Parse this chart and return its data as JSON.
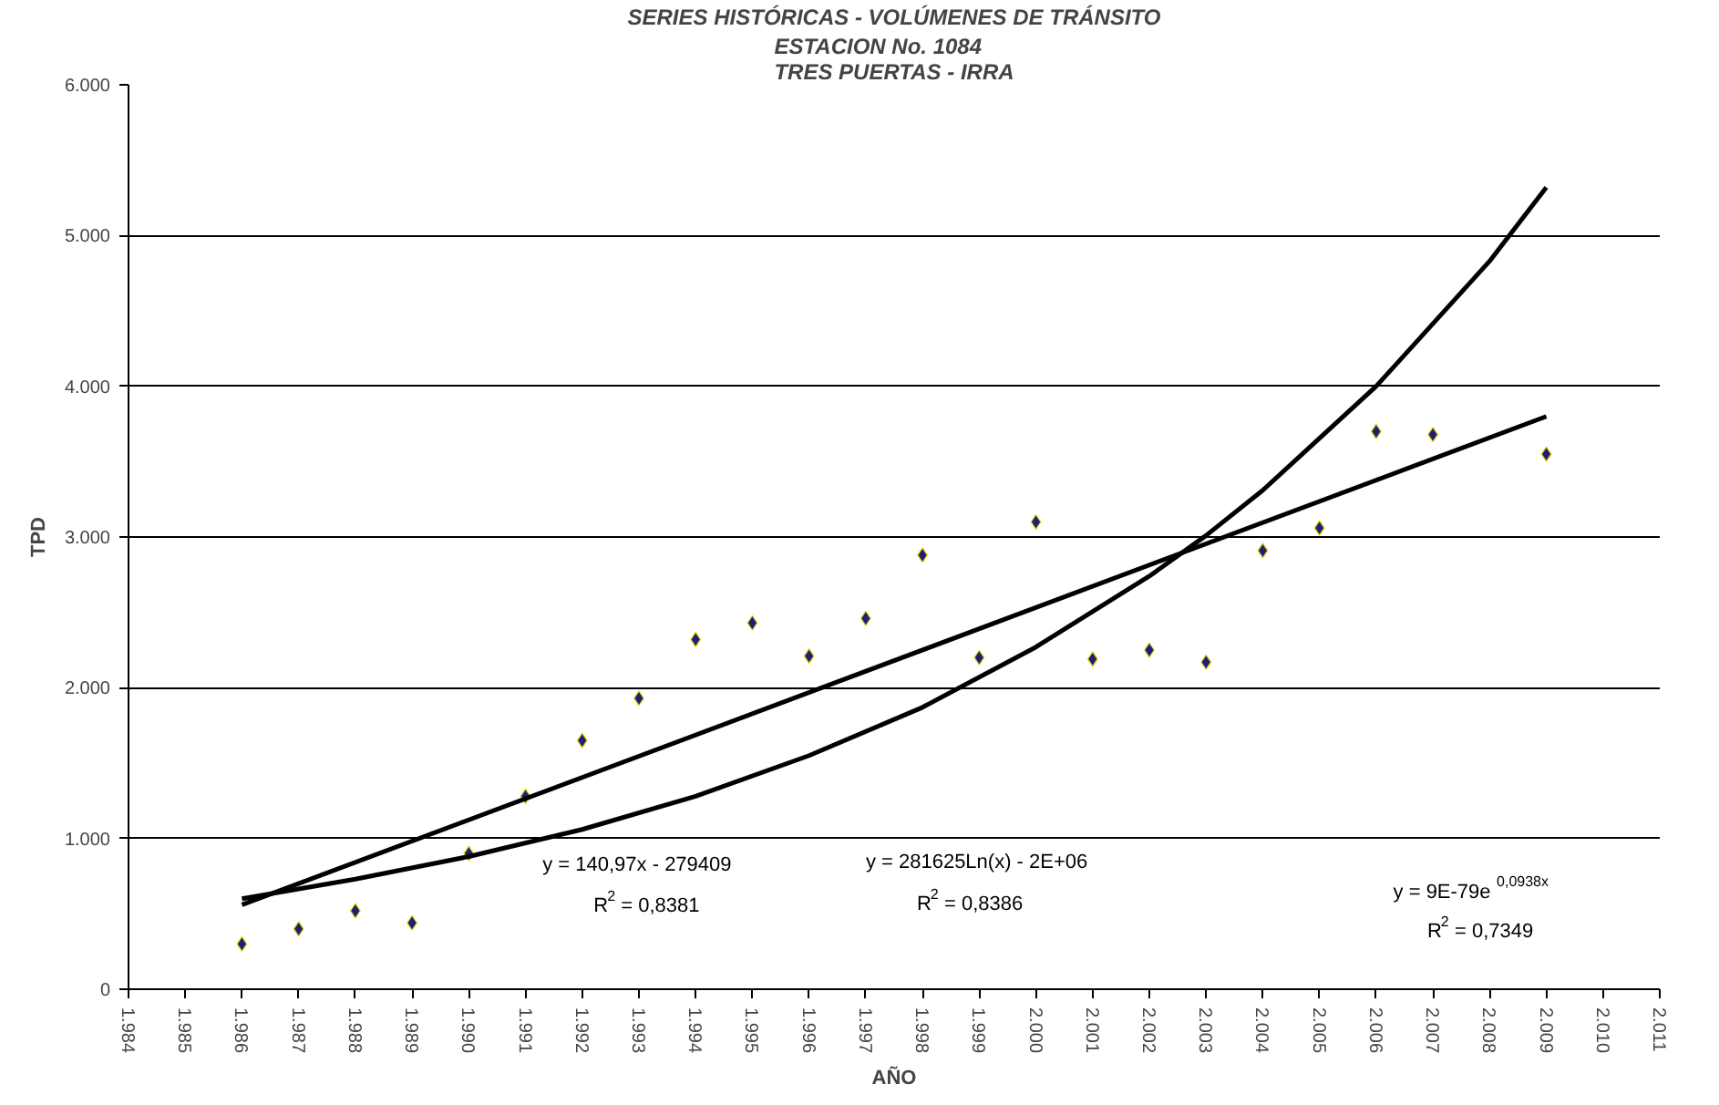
{
  "chart_data": {
    "type": "scatter",
    "title": "SERIES HISTÓRICAS - VOLÚMENES DE TRÁNSITO",
    "subtitle": "ESTACION No. 1084\nTRES PUERTAS - IRRA",
    "xlabel": "AÑO",
    "ylabel": "TPD",
    "x": [
      1986,
      1987,
      1988,
      1989,
      1990,
      1991,
      1992,
      1993,
      1994,
      1995,
      1996,
      1997,
      1998,
      1999,
      2000,
      2001,
      2002,
      2003,
      2004,
      2005,
      2006,
      2007,
      2009
    ],
    "series": [
      {
        "color": "#1f1f7a",
        "marker": "diamond",
        "values": [
          300,
          400,
          520,
          440,
          900,
          1280,
          1650,
          1930,
          2320,
          2430,
          2210,
          2460,
          2880,
          2200,
          3100,
          2190,
          2250,
          2170,
          2910,
          3060,
          3700,
          3680,
          3550
        ]
      },
      {
        "type": "line",
        "color": "#000000",
        "line_style": "solid",
        "x": [
          1986,
          2009
        ],
        "values": [
          560,
          3800
        ]
      },
      {
        "type": "line",
        "color": "#000000",
        "line_style": "solid",
        "x": [
          1986,
          1988,
          1990,
          1992,
          1994,
          1996,
          1998,
          2000,
          2002,
          2003,
          2004,
          2006,
          2008,
          2009
        ],
        "values": [
          600,
          730,
          880,
          1060,
          1280,
          1550,
          1870,
          2270,
          2740,
          3010,
          3310,
          4000,
          4830,
          5320
        ]
      }
    ],
    "annotations": [
      "y = 140,97x - 279409",
      "R$^{2}$ = 0,8381",
      "y = 281625Ln(x) - 2E+06",
      "R$^{2}$ = 0,8386",
      "y = 9E-79e$^{0,0938x}$",
      "R$^{2}$ = 0,7349"
    ],
    "xlim": [
      1984,
      2011
    ],
    "xticks": [
      {
        "value": 1984,
        "label": "1.984"
      },
      {
        "value": 1985,
        "label": "1.985"
      },
      {
        "value": 1986,
        "label": "1.986"
      },
      {
        "value": 1987,
        "label": "1.987"
      },
      {
        "value": 1988,
        "label": "1.988"
      },
      {
        "value": 1989,
        "label": "1.989"
      },
      {
        "value": 1990,
        "label": "1.990"
      },
      {
        "value": 1991,
        "label": "1.991"
      },
      {
        "value": 1992,
        "label": "1.992"
      },
      {
        "value": 1993,
        "label": "1.993"
      },
      {
        "value": 1994,
        "label": "1.994"
      },
      {
        "value": 1995,
        "label": "1.995"
      },
      {
        "value": 1996,
        "label": "1.996"
      },
      {
        "value": 1997,
        "label": "1.997"
      },
      {
        "value": 1998,
        "label": "1.998"
      },
      {
        "value": 1999,
        "label": "1.999"
      },
      {
        "value": 2000,
        "label": "2.000"
      },
      {
        "value": 2001,
        "label": "2.001"
      },
      {
        "value": 2002,
        "label": "2.002"
      },
      {
        "value": 2003,
        "label": "2.003"
      },
      {
        "value": 2004,
        "label": "2.004"
      },
      {
        "value": 2005,
        "label": "2.005"
      },
      {
        "value": 2006,
        "label": "2.006"
      },
      {
        "value": 2007,
        "label": "2.007"
      },
      {
        "value": 2008,
        "label": "2.008"
      },
      {
        "value": 2009,
        "label": "2.009"
      },
      {
        "value": 2010,
        "label": "2.010"
      },
      {
        "value": 2011,
        "label": "2.011"
      }
    ],
    "ylim": [
      0,
      6000
    ],
    "yticks": [
      0,
      {
        "value": 1000,
        "label": "1.000"
      },
      {
        "value": 2000,
        "label": "2.000"
      },
      {
        "value": 3000,
        "label": "3.000"
      },
      {
        "value": 4000,
        "label": "4.000"
      },
      {
        "value": 5000,
        "label": "5.000"
      },
      {
        "value": 6000,
        "label": "6.000"
      }
    ],
    "grid": "y"
  }
}
